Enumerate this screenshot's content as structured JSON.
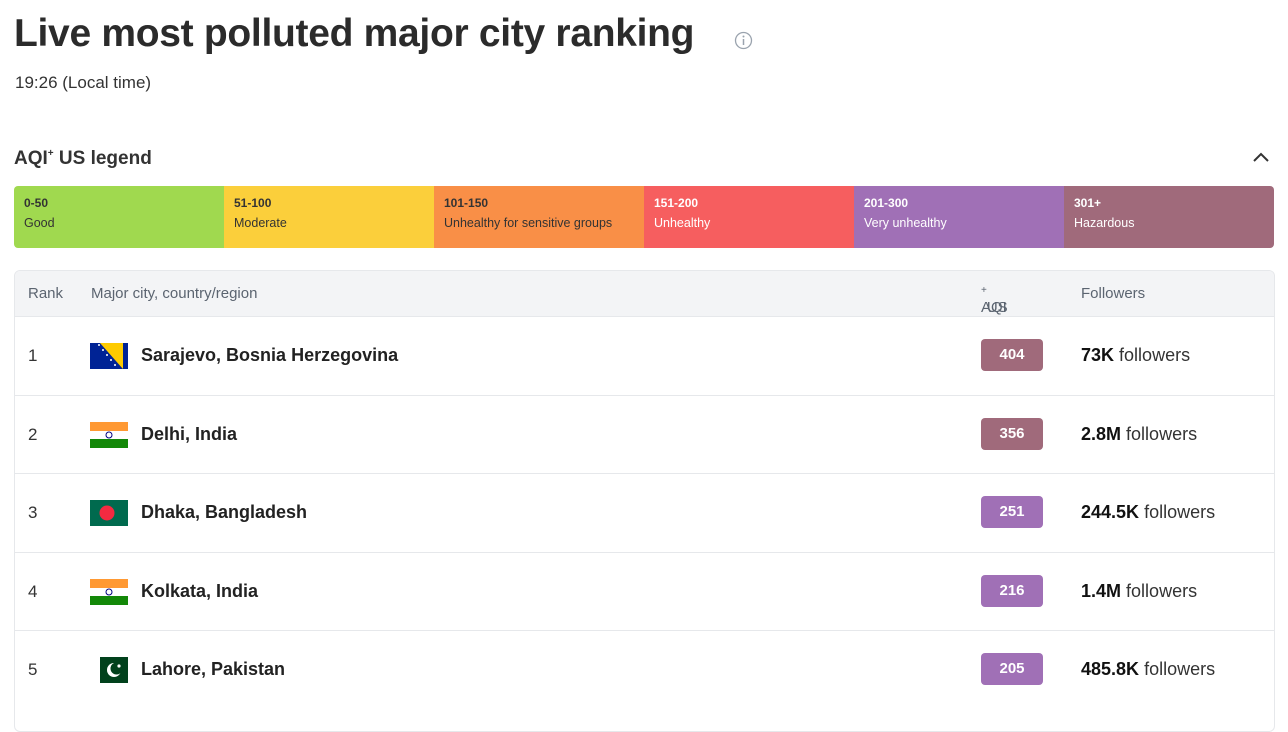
{
  "header": {
    "title": "Live most polluted major city ranking",
    "subtitle": "19:26 (Local time)"
  },
  "legend": {
    "title": {
      "main": "AQI",
      "sup": "+",
      "rest": "US legend"
    },
    "items": [
      {
        "range": "0-50",
        "label": "Good",
        "color": "#a0d94f"
      },
      {
        "range": "51-100",
        "label": "Moderate",
        "color": "#fbcf3b"
      },
      {
        "range": "101-150",
        "label": "Unhealthy for sensitive groups",
        "color": "#f98f47"
      },
      {
        "range": "151-200",
        "label": "Unhealthy",
        "color": "#f65e5f"
      },
      {
        "range": "201-300",
        "label": "Very unhealthy",
        "color": "#a070b6"
      },
      {
        "range": "301+",
        "label": "Hazardous",
        "color": "#a06a7b"
      }
    ]
  },
  "table": {
    "columns": {
      "rank": "Rank",
      "city": "Major city, country/region",
      "aqi": {
        "main": "AQI",
        "sup": "+",
        "rest": "US"
      },
      "followers": "Followers"
    },
    "rows": [
      {
        "rank": 1,
        "city": "Sarajevo, Bosnia Herzegovina",
        "aqi": 404,
        "color": "#a06a7b",
        "followers": "73K",
        "followers_word": "followers"
      },
      {
        "rank": 2,
        "city": "Delhi, India",
        "aqi": 356,
        "color": "#a06a7b",
        "followers": "2.8M",
        "followers_word": "followers"
      },
      {
        "rank": 3,
        "city": "Dhaka, Bangladesh",
        "aqi": 251,
        "color": "#a070b6",
        "followers": "244.5K",
        "followers_word": "followers"
      },
      {
        "rank": 4,
        "city": "Kolkata, India",
        "aqi": 216,
        "color": "#a070b6",
        "followers": "1.4M",
        "followers_word": "followers"
      },
      {
        "rank": 5,
        "city": "Lahore, Pakistan",
        "aqi": 205,
        "color": "#a070b6",
        "followers": "485.8K",
        "followers_word": "followers"
      }
    ]
  }
}
